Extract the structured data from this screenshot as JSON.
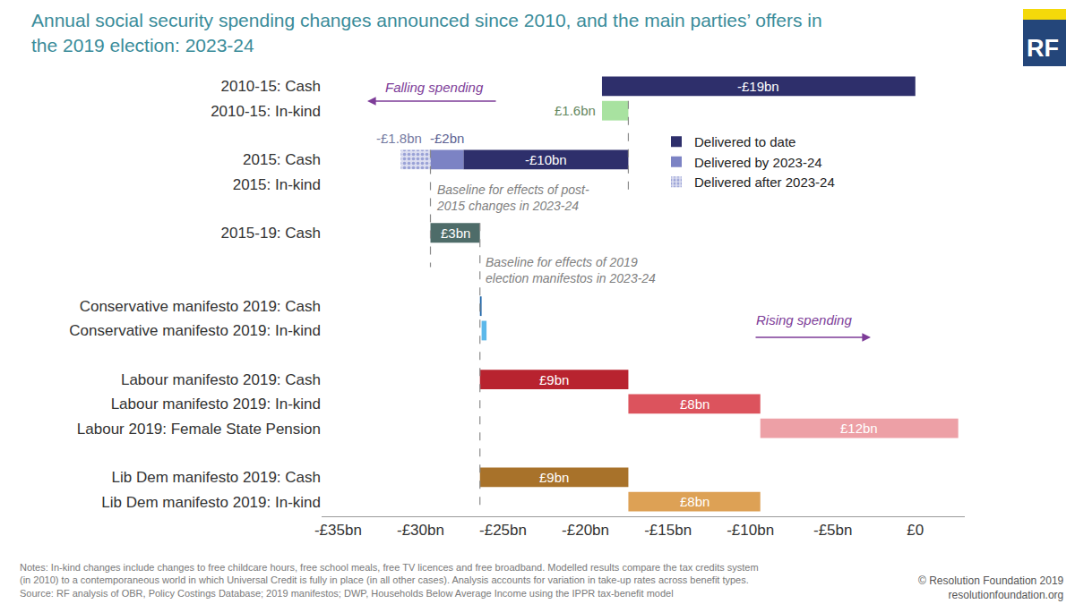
{
  "chart_data": {
    "type": "waterfall",
    "title": "Annual social security spending changes announced since 2010, and the main parties’ offers in\nthe 2019 election: 2023-24",
    "orientation": "horizontal",
    "categories": [
      "2010-15: Cash",
      "2010-15: In-kind",
      null,
      "2015: Cash",
      "2015: In-kind",
      null,
      "2015-19: Cash",
      null,
      null,
      "Conservative manifesto 2019: Cash",
      "Conservative manifesto 2019: In-kind",
      null,
      "Labour manifesto 2019: Cash",
      "Labour manifesto 2019: In-kind",
      "Labour 2019: Female State Pension",
      null,
      "Lib Dem manifesto 2019: Cash",
      "Lib Dem manifesto 2019: In-kind"
    ],
    "steps": [
      {
        "category": "2010-15: Cash",
        "value": -19,
        "value_label": "-£19bn",
        "color": "#2e2f6b"
      },
      {
        "category": "2010-15: In-kind",
        "value": 1.6,
        "value_label": "£1.6bn",
        "color": "#a8e2a0"
      },
      {
        "category": "2015: Cash",
        "name": "Delivered to date",
        "value": -10,
        "value_label": "-£10bn",
        "color": "#2e2f6b"
      },
      {
        "category": "2015: Cash",
        "name": "Delivered by 2023-24",
        "value": -2,
        "value_label": "-£2bn",
        "color": "#7c83c4"
      },
      {
        "category": "2015: Cash",
        "name": "Delivered after 2023-24",
        "value": -1.8,
        "value_label": "-£1.8bn",
        "color": "#9aa2d6",
        "marker": "hatched"
      },
      {
        "category": "2015-19: Cash",
        "value": 3,
        "value_label": "£3bn",
        "color": "#4e6c69",
        "starts_after": "Delivered by 2023-24"
      },
      {
        "category": "Conservative manifesto 2019: Cash",
        "value": 0.1,
        "color": "#1f66a8",
        "starts_after": "2015-19: Cash"
      },
      {
        "category": "Conservative manifesto 2019: In-kind",
        "value": 0.3,
        "color": "#5bb8ea"
      },
      {
        "category": "Labour manifesto 2019: Cash",
        "value": 9,
        "value_label": "£9bn",
        "color": "#b8232f",
        "starts_after": "2015-19: Cash"
      },
      {
        "category": "Labour manifesto 2019: In-kind",
        "value": 8,
        "value_label": "£8bn",
        "color": "#dc535d"
      },
      {
        "category": "Labour 2019: Female State Pension",
        "value": 12,
        "value_label": "£12bn",
        "color": "#eda0a6"
      },
      {
        "category": "Lib Dem manifesto 2019: Cash",
        "value": 9,
        "value_label": "£9bn",
        "color": "#a8722a",
        "starts_after": "2015-19: Cash"
      },
      {
        "category": "Lib Dem manifesto 2019: In-kind",
        "value": 8,
        "value_label": "£8bn",
        "color": "#dda155"
      }
    ],
    "xlim": [
      -36,
      3
    ],
    "xticks": [
      {
        "value": -35,
        "label": "-£35bn"
      },
      {
        "value": -30,
        "label": "-£30bn"
      },
      {
        "value": -25,
        "label": "-£25bn"
      },
      {
        "value": -20,
        "label": "-£20bn"
      },
      {
        "value": -15,
        "label": "-£15bn"
      },
      {
        "value": -10,
        "label": "-£10bn"
      },
      {
        "value": -5,
        "label": "-£5bn"
      },
      {
        "value": 0,
        "label": "£0"
      }
    ],
    "grid": false,
    "legend": "top right",
    "data_labels": true,
    "annotations": [
      {
        "text": "Baseline for effects of post-\n2015 changes in 2023-24",
        "after": "Delivered by 2023-24"
      },
      {
        "text": "Baseline for effects of 2019\nelection manifestos in 2023-24",
        "after": "2015-19: Cash"
      }
    ],
    "arrow_labels": {
      "left": "Falling spending",
      "right": "Rising spending"
    },
    "notes": [
      "Notes: In-kind changes include changes to free childcare hours, free school meals, free TV licences and free broadband. Modelled results compare the tax credits system",
      "(in 2010) to a contemporaneous world in which Universal Credit is fully in place (in all other cases). Analysis accounts for variation in take-up rates across benefit types.",
      "Source: RF analysis of OBR, Policy Costings Database; 2019 manifestos; DWP, Households Below Average Income using the IPPR tax-benefit model"
    ],
    "credit": [
      "© Resolution Foundation 2019",
      "resolutionfoundation.org"
    ],
    "logo": "RF"
  }
}
